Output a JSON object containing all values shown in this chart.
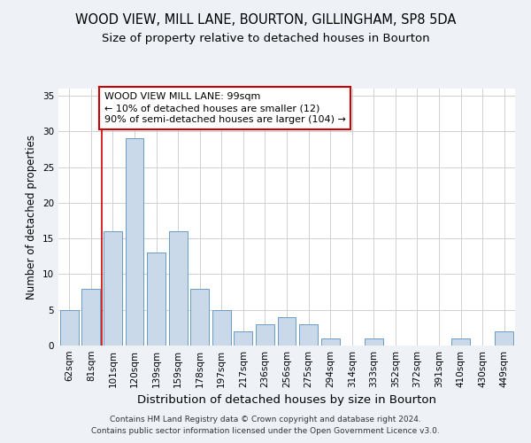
{
  "title": "WOOD VIEW, MILL LANE, BOURTON, GILLINGHAM, SP8 5DA",
  "subtitle": "Size of property relative to detached houses in Bourton",
  "xlabel": "Distribution of detached houses by size in Bourton",
  "ylabel": "Number of detached properties",
  "footnote1": "Contains HM Land Registry data © Crown copyright and database right 2024.",
  "footnote2": "Contains public sector information licensed under the Open Government Licence v3.0.",
  "categories": [
    "62sqm",
    "81sqm",
    "101sqm",
    "120sqm",
    "139sqm",
    "159sqm",
    "178sqm",
    "197sqm",
    "217sqm",
    "236sqm",
    "256sqm",
    "275sqm",
    "294sqm",
    "314sqm",
    "333sqm",
    "352sqm",
    "372sqm",
    "391sqm",
    "410sqm",
    "430sqm",
    "449sqm"
  ],
  "values": [
    5,
    8,
    16,
    29,
    13,
    16,
    8,
    5,
    2,
    3,
    4,
    3,
    1,
    0,
    1,
    0,
    0,
    0,
    1,
    0,
    2
  ],
  "bar_color": "#c9d9ea",
  "bar_edge_color": "#6a9bbf",
  "bar_linewidth": 0.7,
  "annotation_line1": "WOOD VIEW MILL LANE: 99sqm",
  "annotation_line2": "← 10% of detached houses are smaller (12)",
  "annotation_line3": "90% of semi-detached houses are larger (104) →",
  "box_edge_color": "#cc0000",
  "redline_index": 1.5,
  "ylim": [
    0,
    36
  ],
  "yticks": [
    0,
    5,
    10,
    15,
    20,
    25,
    30,
    35
  ],
  "grid_color": "#d0d0d0",
  "bg_color": "#eef2f7",
  "plot_bg_color": "#ffffff",
  "title_fontsize": 10.5,
  "subtitle_fontsize": 9.5,
  "xlabel_fontsize": 9.5,
  "ylabel_fontsize": 8.5,
  "tick_fontsize": 7.5,
  "annotation_fontsize": 8,
  "footnote_fontsize": 6.5
}
